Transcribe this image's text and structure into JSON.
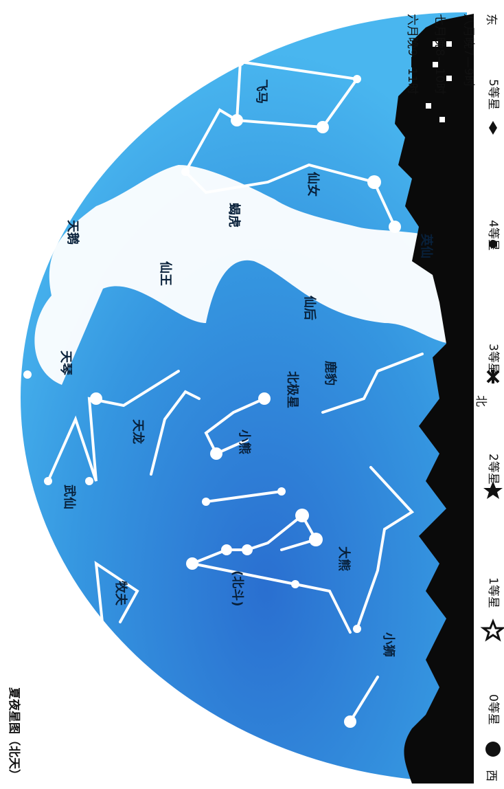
{
  "title": "夏夜星图（北天）",
  "times": [
    "六月晚9—11时",
    "七月晚8—10时",
    "八月晚7—9时"
  ],
  "directions": {
    "east": "东",
    "north": "北",
    "west": "西"
  },
  "legend": [
    "0等星",
    "1等星",
    "2等星",
    "3等星",
    "4等星",
    "5等星"
  ],
  "constellations": [
    "飞马",
    "仙女",
    "天鹅",
    "蝎虎",
    "仙王",
    "英仙",
    "仙后",
    "天琴",
    "鹿豹",
    "北极星",
    "天龙",
    "小熊",
    "武仙",
    "大熊",
    "(北斗)",
    "牧夫",
    "小狮"
  ]
}
